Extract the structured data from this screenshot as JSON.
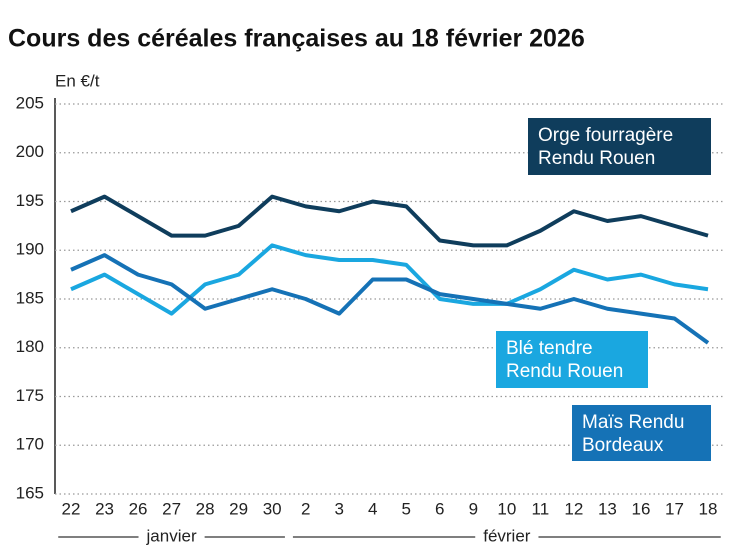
{
  "chart_data": {
    "type": "line",
    "title": "Cours des céréales françaises au 18 février 2026",
    "y_label": "En €/t",
    "categories": [
      "22",
      "23",
      "26",
      "27",
      "28",
      "29",
      "30",
      "2",
      "3",
      "4",
      "5",
      "6",
      "9",
      "10",
      "11",
      "12",
      "13",
      "16",
      "17",
      "18"
    ],
    "category_groups": [
      "janvier",
      "janvier",
      "janvier",
      "janvier",
      "janvier",
      "janvier",
      "janvier",
      "février",
      "février",
      "février",
      "février",
      "février",
      "février",
      "février",
      "février",
      "février",
      "février",
      "février",
      "février",
      "février"
    ],
    "ylim": [
      165,
      205
    ],
    "yticks": [
      165,
      170,
      175,
      180,
      185,
      190,
      195,
      200,
      205
    ],
    "grid": true,
    "series": [
      {
        "name": "Orge fourragère\nRendu Rouen",
        "color": "#0f3d5c",
        "values": [
          194,
          195.5,
          193.5,
          191.5,
          191.5,
          192.5,
          195.5,
          194.5,
          194,
          195,
          194.5,
          191,
          190.5,
          190.5,
          192,
          194,
          193,
          193.5,
          192.5,
          191.5
        ]
      },
      {
        "name": "Blé tendre\nRendu Rouen",
        "color": "#1aa7e0",
        "values": [
          186,
          187.5,
          185.5,
          183.5,
          186.5,
          187.5,
          190.5,
          189.5,
          189,
          189,
          188.5,
          185,
          184.5,
          184.5,
          186,
          188,
          187,
          187.5,
          186.5,
          186
        ]
      },
      {
        "name": "Maïs Rendu\nBordeaux",
        "color": "#1572b6",
        "values": [
          188,
          189.5,
          187.5,
          186.5,
          184,
          185,
          186,
          185,
          183.5,
          187,
          187,
          185.5,
          185,
          184.5,
          184,
          185,
          184,
          183.5,
          183,
          180.5
        ]
      }
    ]
  }
}
